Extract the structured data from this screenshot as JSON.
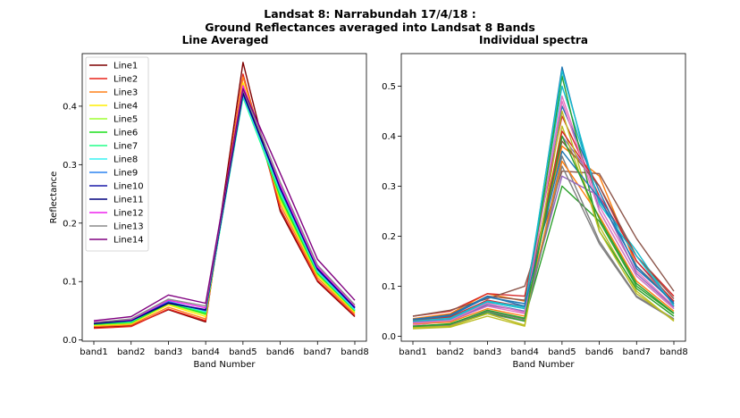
{
  "figure": {
    "title_line1": "Landsat 8: Narrabundah 17/4/18 :",
    "title_line2": "Ground Reflectances averaged into Landsat 8 Bands"
  },
  "chart_data": [
    {
      "type": "line",
      "title": "Line Averaged",
      "xlabel": "Band Number",
      "ylabel": "Reflectance",
      "categories": [
        "band1",
        "band2",
        "band3",
        "band4",
        "band5",
        "band6",
        "band7",
        "band8"
      ],
      "ylim": [
        -0.002,
        0.49
      ],
      "yticks": [
        0.0,
        0.1,
        0.2,
        0.3,
        0.4
      ],
      "ytick_labels": [
        "0.0",
        "0.1",
        "0.2",
        "0.3",
        "0.4"
      ],
      "grid": false,
      "legend_position": "top-left",
      "series": [
        {
          "name": "Line1",
          "color": "#7f0000",
          "values": [
            0.022,
            0.024,
            0.052,
            0.031,
            0.475,
            0.22,
            0.1,
            0.04
          ]
        },
        {
          "name": "Line2",
          "color": "#e8231a",
          "values": [
            0.02,
            0.023,
            0.053,
            0.033,
            0.455,
            0.225,
            0.102,
            0.042
          ]
        },
        {
          "name": "Line3",
          "color": "#ff8018",
          "values": [
            0.023,
            0.026,
            0.056,
            0.036,
            0.45,
            0.232,
            0.106,
            0.045
          ]
        },
        {
          "name": "Line4",
          "color": "#ffee00",
          "values": [
            0.025,
            0.028,
            0.06,
            0.04,
            0.44,
            0.238,
            0.11,
            0.047
          ]
        },
        {
          "name": "Line5",
          "color": "#9dff30",
          "values": [
            0.026,
            0.029,
            0.062,
            0.043,
            0.43,
            0.242,
            0.112,
            0.049
          ]
        },
        {
          "name": "Line6",
          "color": "#1adf1a",
          "values": [
            0.027,
            0.03,
            0.063,
            0.045,
            0.42,
            0.245,
            0.114,
            0.05
          ]
        },
        {
          "name": "Line7",
          "color": "#22ff88",
          "values": [
            0.028,
            0.031,
            0.064,
            0.047,
            0.415,
            0.25,
            0.116,
            0.051
          ]
        },
        {
          "name": "Line8",
          "color": "#39f2f2",
          "values": [
            0.029,
            0.032,
            0.065,
            0.049,
            0.418,
            0.255,
            0.118,
            0.052
          ]
        },
        {
          "name": "Line9",
          "color": "#2b84f0",
          "values": [
            0.03,
            0.033,
            0.066,
            0.05,
            0.42,
            0.26,
            0.12,
            0.054
          ]
        },
        {
          "name": "Line10",
          "color": "#1a1aa8",
          "values": [
            0.029,
            0.034,
            0.064,
            0.051,
            0.425,
            0.258,
            0.121,
            0.055
          ]
        },
        {
          "name": "Line11",
          "color": "#00007f",
          "values": [
            0.028,
            0.033,
            0.063,
            0.052,
            0.422,
            0.262,
            0.122,
            0.056
          ]
        },
        {
          "name": "Line12",
          "color": "#ee22ee",
          "values": [
            0.031,
            0.035,
            0.068,
            0.055,
            0.435,
            0.265,
            0.125,
            0.058
          ]
        },
        {
          "name": "Line13",
          "color": "#8a8a8a",
          "values": [
            0.03,
            0.036,
            0.07,
            0.058,
            0.428,
            0.27,
            0.128,
            0.06
          ]
        },
        {
          "name": "Line14",
          "color": "#800080",
          "values": [
            0.033,
            0.04,
            0.077,
            0.063,
            0.43,
            0.285,
            0.138,
            0.068
          ]
        }
      ]
    },
    {
      "type": "line",
      "title": "Individual spectra",
      "xlabel": "Band Number",
      "ylabel": "",
      "categories": [
        "band1",
        "band2",
        "band3",
        "band4",
        "band5",
        "band6",
        "band7",
        "band8"
      ],
      "ylim": [
        -0.01,
        0.565
      ],
      "yticks": [
        0.0,
        0.1,
        0.2,
        0.3,
        0.4,
        0.5
      ],
      "ytick_labels": [
        "0.0",
        "0.1",
        "0.2",
        "0.3",
        "0.4",
        "0.5"
      ],
      "grid": false,
      "series": [
        {
          "color": "#1f77b4",
          "values": [
            0.025,
            0.03,
            0.065,
            0.05,
            0.538,
            0.25,
            0.12,
            0.055
          ]
        },
        {
          "color": "#ff7f0e",
          "values": [
            0.035,
            0.045,
            0.085,
            0.07,
            0.38,
            0.32,
            0.14,
            0.07
          ]
        },
        {
          "color": "#2ca02c",
          "values": [
            0.02,
            0.025,
            0.05,
            0.035,
            0.3,
            0.23,
            0.1,
            0.045
          ]
        },
        {
          "color": "#d62728",
          "values": [
            0.04,
            0.05,
            0.085,
            0.08,
            0.44,
            0.28,
            0.16,
            0.08
          ]
        },
        {
          "color": "#9467bd",
          "values": [
            0.03,
            0.035,
            0.07,
            0.06,
            0.4,
            0.3,
            0.15,
            0.065
          ]
        },
        {
          "color": "#8c564b",
          "values": [
            0.04,
            0.052,
            0.075,
            0.1,
            0.33,
            0.325,
            0.195,
            0.09
          ]
        },
        {
          "color": "#e377c2",
          "values": [
            0.022,
            0.03,
            0.06,
            0.045,
            0.48,
            0.26,
            0.13,
            0.06
          ]
        },
        {
          "color": "#7f7f7f",
          "values": [
            0.018,
            0.022,
            0.045,
            0.03,
            0.36,
            0.19,
            0.08,
            0.035
          ]
        },
        {
          "color": "#bcbd22",
          "values": [
            0.015,
            0.018,
            0.04,
            0.02,
            0.42,
            0.22,
            0.09,
            0.03
          ]
        },
        {
          "color": "#17becf",
          "values": [
            0.028,
            0.033,
            0.068,
            0.055,
            0.5,
            0.27,
            0.17,
            0.06
          ]
        },
        {
          "color": "#1f77b4",
          "values": [
            0.032,
            0.04,
            0.078,
            0.065,
            0.46,
            0.29,
            0.135,
            0.068
          ]
        },
        {
          "color": "#ff7f0e",
          "values": [
            0.025,
            0.028,
            0.055,
            0.04,
            0.35,
            0.24,
            0.11,
            0.05
          ]
        },
        {
          "color": "#2ca02c",
          "values": [
            0.018,
            0.02,
            0.048,
            0.03,
            0.52,
            0.21,
            0.095,
            0.04
          ]
        },
        {
          "color": "#d62728",
          "values": [
            0.03,
            0.038,
            0.072,
            0.058,
            0.41,
            0.3,
            0.15,
            0.07
          ]
        },
        {
          "color": "#9467bd",
          "values": [
            0.028,
            0.031,
            0.062,
            0.05,
            0.32,
            0.28,
            0.125,
            0.058
          ]
        },
        {
          "color": "#8c564b",
          "values": [
            0.033,
            0.043,
            0.08,
            0.072,
            0.39,
            0.3,
            0.16,
            0.075
          ]
        },
        {
          "color": "#e377c2",
          "values": [
            0.026,
            0.031,
            0.066,
            0.047,
            0.47,
            0.25,
            0.12,
            0.055
          ]
        },
        {
          "color": "#7f7f7f",
          "values": [
            0.02,
            0.022,
            0.05,
            0.033,
            0.34,
            0.185,
            0.078,
            0.033
          ]
        },
        {
          "color": "#bcbd22",
          "values": [
            0.017,
            0.02,
            0.045,
            0.022,
            0.45,
            0.21,
            0.085,
            0.032
          ]
        },
        {
          "color": "#17becf",
          "values": [
            0.03,
            0.036,
            0.07,
            0.058,
            0.53,
            0.265,
            0.16,
            0.062
          ]
        },
        {
          "color": "#1f77b4",
          "values": [
            0.034,
            0.042,
            0.08,
            0.06,
            0.37,
            0.275,
            0.14,
            0.065
          ]
        },
        {
          "color": "#2ca02c",
          "values": [
            0.02,
            0.024,
            0.052,
            0.036,
            0.4,
            0.235,
            0.105,
            0.046
          ]
        }
      ]
    }
  ]
}
